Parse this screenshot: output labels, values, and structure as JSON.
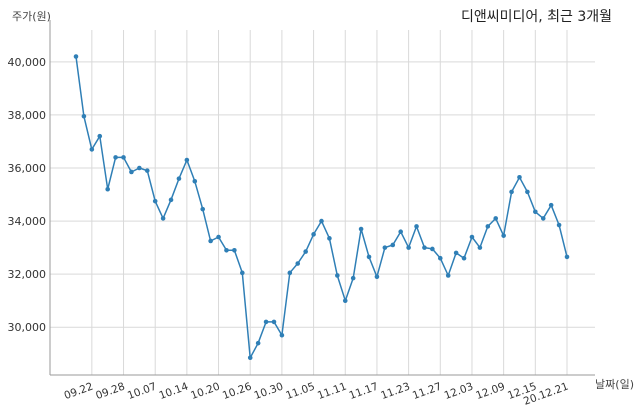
{
  "chart_data": {
    "type": "line",
    "title": "디앤씨미디어, 최근 3개월",
    "xlabel": "날짜(일)",
    "ylabel": "주가(원)",
    "ylim": [
      28200,
      41200
    ],
    "y_ticks": [
      30000,
      32000,
      34000,
      36000,
      38000,
      40000
    ],
    "y_tick_labels": [
      "30,000",
      "32,000",
      "34,000",
      "36,000",
      "38,000",
      "40,000"
    ],
    "x_tick_labels": [
      "09.22",
      "09.28",
      "10.07",
      "10.14",
      "10.20",
      "10.26",
      "10.30",
      "11.05",
      "11.11",
      "11.17",
      "11.23",
      "11.27",
      "12.03",
      "12.09",
      "12.15",
      "20.12.21"
    ],
    "x_tick_positions": [
      2,
      6,
      10,
      14,
      18,
      22,
      26,
      30,
      34,
      38,
      42,
      46,
      50,
      54,
      58,
      62
    ],
    "grid": true,
    "color": "#2f7fb6",
    "series": [
      {
        "values": [
          40200,
          37950,
          36700,
          37200,
          35200,
          36400,
          36400,
          35850,
          36000,
          35900,
          34750,
          34100,
          34800,
          35600,
          36300,
          35500,
          34450,
          33250,
          33400,
          32900,
          32900,
          32050,
          28850,
          29400,
          30200,
          30200,
          29700,
          32050,
          32400,
          32850,
          33500,
          34000,
          33350,
          31950,
          31000,
          31850,
          33700,
          32650,
          31900,
          33000,
          33100,
          33600,
          33000,
          33800,
          33000,
          32950,
          32600,
          31950,
          32800,
          32600,
          33400,
          33000,
          33800,
          34100,
          33450,
          35100,
          35650,
          35100,
          34350,
          34100,
          34600,
          33850,
          32650
        ]
      }
    ]
  }
}
